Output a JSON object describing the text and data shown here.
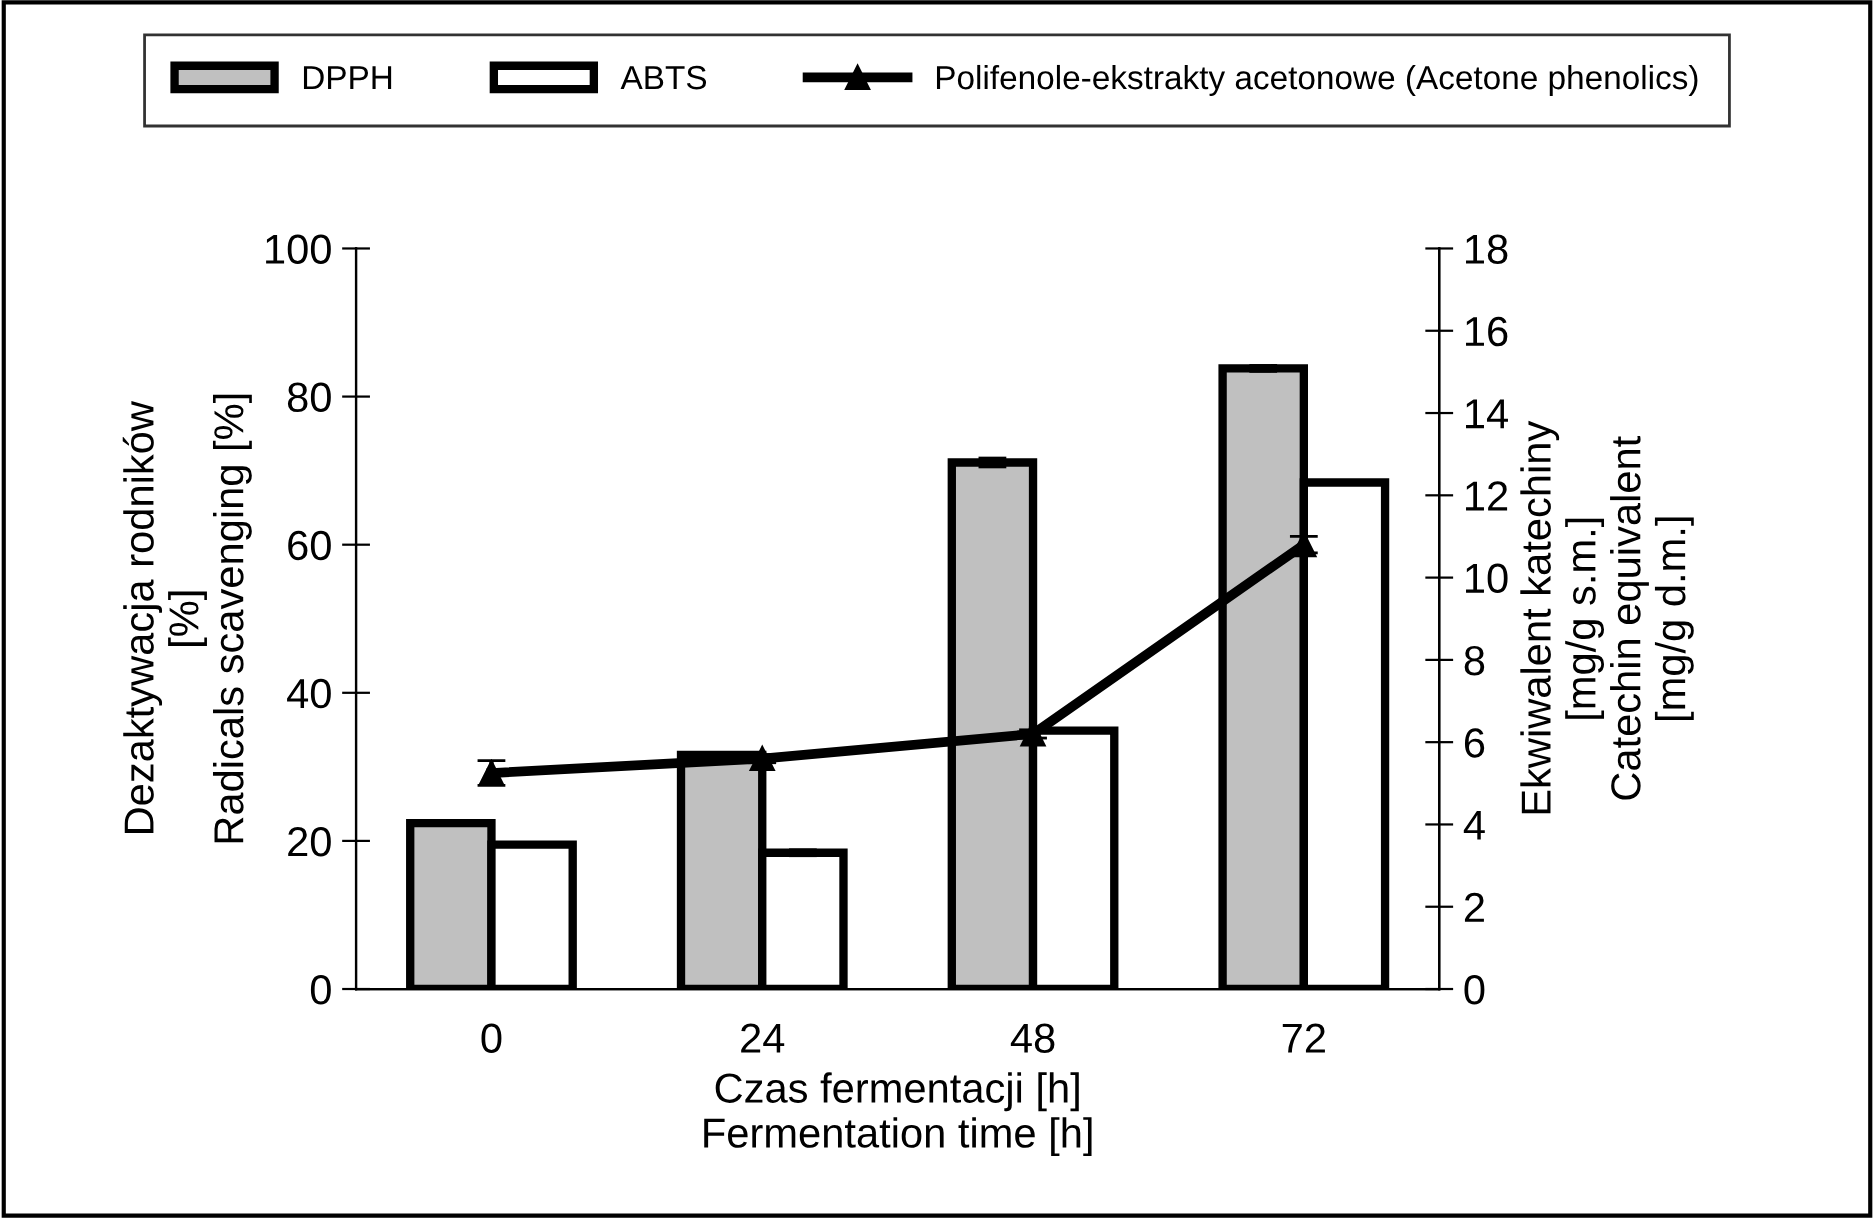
{
  "chart_data": {
    "type": "bar",
    "categories": [
      "0",
      "24",
      "48",
      "72"
    ],
    "xlabel": "Czas fermentacji [h]\nFermentation time [h]",
    "ylabel": "Dezaktywacja rodników\n[%]\nRadicals scavenging [%]",
    "y2label": "Ekwiwalent katechiny\n[mg/g s.m.]\nCatechin equivalent\n[mg/g d.m.]",
    "ylim": [
      0,
      100
    ],
    "yticks": [
      0,
      20,
      40,
      60,
      80,
      100
    ],
    "y2lim": [
      0,
      18
    ],
    "y2ticks": [
      0,
      2,
      4,
      6,
      8,
      10,
      12,
      14,
      16,
      18
    ],
    "grid": false,
    "legend": "top",
    "series": [
      {
        "name": "DPPH",
        "color": "#c0c0c0",
        "values": [
          22.4,
          31.6,
          71.1,
          83.8
        ],
        "errors": [
          null,
          null,
          0.6,
          0.4
        ]
      },
      {
        "name": "ABTS",
        "color": "#ffffff",
        "values": [
          19.5,
          18.4,
          34.9,
          68.4
        ],
        "errors": [
          null,
          0.4,
          null,
          null
        ]
      },
      {
        "name": "Polifenole-ekstrakty acetonowe (Acetone phenolics)",
        "type": "line",
        "axis": "y2",
        "color": "#000000",
        "marker": "triangle",
        "values": [
          5.25,
          5.6,
          6.2,
          10.8
        ],
        "errors": [
          0.3,
          0.1,
          0.1,
          0.2
        ]
      }
    ]
  }
}
